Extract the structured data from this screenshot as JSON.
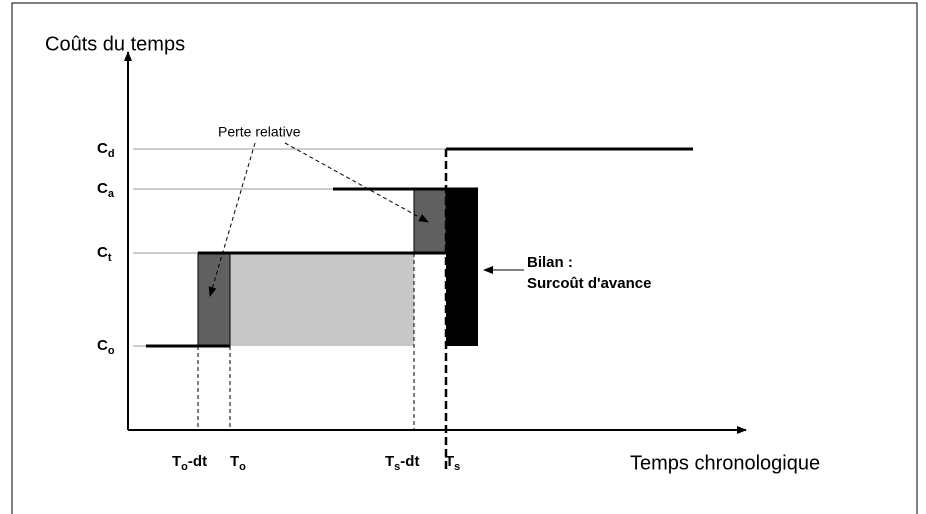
{
  "axes": {
    "y_label": "Coûts du temps",
    "x_label": "Temps chronologique"
  },
  "levels": [
    {
      "main": "C",
      "sub": "d"
    },
    {
      "main": "C",
      "sub": "a"
    },
    {
      "main": "C",
      "sub": "t"
    },
    {
      "main": "C",
      "sub": "o"
    }
  ],
  "times": [
    {
      "main": "T",
      "sub": "o",
      "suffix": "-dt"
    },
    {
      "main": "T",
      "sub": "o",
      "suffix": ""
    },
    {
      "main": "T",
      "sub": "s",
      "suffix": "-dt"
    },
    {
      "main": "T",
      "sub": "s",
      "suffix": ""
    }
  ],
  "annotations": {
    "loss": "Perte relative",
    "balance": "Bilan :",
    "balance_detail": "Surcoût d'avance"
  }
}
